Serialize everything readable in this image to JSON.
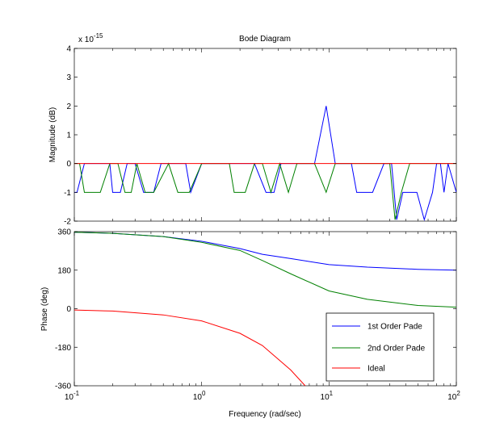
{
  "chart_data": [
    {
      "type": "line",
      "title": "Bode Diagram",
      "ylabel": "Magnitude (dB)",
      "y_scale_label": "x 10",
      "y_scale_exponent": "-15",
      "xscale": "log",
      "xlim": [
        0.1,
        100
      ],
      "ylim": [
        -2,
        4
      ],
      "yticks": [
        {
          "value": -2,
          "label": "-2"
        },
        {
          "value": -1,
          "label": "-1"
        },
        {
          "value": 0,
          "label": "0"
        },
        {
          "value": 1,
          "label": "1"
        },
        {
          "value": 2,
          "label": "2"
        },
        {
          "value": 3,
          "label": "3"
        },
        {
          "value": 4,
          "label": "4"
        }
      ],
      "series": [
        {
          "name": "1st Order Pade",
          "color": "#0000ff",
          "x": [
            0.1,
            0.105,
            0.12,
            0.19,
            0.2,
            0.23,
            0.26,
            0.3,
            0.35,
            0.42,
            0.48,
            0.75,
            0.82,
            1.0,
            1.65,
            2.6,
            3.2,
            3.7,
            4.2,
            4.8,
            5.6,
            6.6,
            7.7,
            9.5,
            11.2,
            13.0,
            15.0,
            16.5,
            22,
            27,
            31,
            34,
            38,
            43,
            49,
            56,
            65,
            70,
            75,
            80,
            86,
            100
          ],
          "y": [
            -1,
            -1,
            0,
            0,
            -1,
            -1,
            0,
            0,
            -1,
            -1,
            0,
            0,
            -1,
            0,
            0,
            0,
            -1,
            -1,
            0,
            0,
            0,
            0,
            0,
            2,
            0,
            0,
            0,
            -1,
            -1,
            0,
            0,
            -1.95,
            -1,
            -1,
            -1,
            -1.95,
            -1,
            0,
            0,
            -1,
            0,
            -1
          ]
        },
        {
          "name": "2nd Order Pade",
          "color": "#008000",
          "x": [
            0.1,
            0.11,
            0.12,
            0.14,
            0.16,
            0.19,
            0.22,
            0.25,
            0.28,
            0.31,
            0.36,
            0.42,
            0.55,
            0.65,
            0.8,
            1.0,
            1.65,
            1.8,
            2.2,
            2.6,
            3.0,
            3.5,
            4.1,
            4.8,
            5.6,
            6.6,
            7.7,
            9.5,
            11.2,
            13,
            25,
            30,
            33,
            37,
            43,
            50,
            55,
            60,
            80,
            90,
            100
          ],
          "y": [
            0,
            0,
            -1,
            -1,
            -1,
            0,
            0,
            -1,
            -1,
            0,
            -1,
            -1,
            0,
            -1,
            -1,
            0,
            0,
            -1,
            -1,
            0,
            0,
            -1,
            0,
            -1,
            0,
            0,
            0,
            -1,
            0,
            0,
            0,
            0,
            -1.95,
            -1,
            0,
            0,
            0,
            0,
            0,
            0,
            0
          ]
        },
        {
          "name": "Ideal",
          "color": "#ff0000",
          "x": [
            0.1,
            100
          ],
          "y": [
            0,
            0
          ]
        }
      ]
    },
    {
      "type": "line",
      "ylabel": "Phase (deg)",
      "xlabel": "Frequency  (rad/sec)",
      "xscale": "log",
      "xlim": [
        0.1,
        100
      ],
      "ylim": [
        -360,
        360
      ],
      "xticks": [
        {
          "value": 0.1,
          "base": "10",
          "exp": "-1"
        },
        {
          "value": 1,
          "base": "10",
          "exp": "0"
        },
        {
          "value": 10,
          "base": "10",
          "exp": "1"
        },
        {
          "value": 100,
          "base": "10",
          "exp": "2"
        }
      ],
      "yticks": [
        {
          "value": -360,
          "label": "-360"
        },
        {
          "value": -180,
          "label": "-180"
        },
        {
          "value": 0,
          "label": "0"
        },
        {
          "value": 180,
          "label": "180"
        },
        {
          "value": 360,
          "label": "360"
        }
      ],
      "legend_position": "bottom-right",
      "series": [
        {
          "name": "1st Order Pade",
          "color": "#0000ff",
          "x": [
            0.1,
            0.2,
            0.5,
            1,
            2,
            3,
            5,
            10,
            20,
            50,
            100
          ],
          "y": [
            357,
            352,
            337,
            315,
            281,
            254,
            234,
            206,
            194,
            184,
            180
          ]
        },
        {
          "name": "2nd Order Pade",
          "color": "#008000",
          "x": [
            0.1,
            0.2,
            0.5,
            1,
            2,
            3,
            5,
            10,
            20,
            50,
            100
          ],
          "y": [
            357,
            352,
            337,
            310,
            272,
            225,
            163,
            83,
            44,
            15,
            7
          ]
        },
        {
          "name": "Ideal",
          "color": "#ff0000",
          "x": [
            0.1,
            0.2,
            0.5,
            1,
            2,
            3,
            5,
            6.5
          ],
          "y": [
            -6,
            -11,
            -29,
            -57,
            -115,
            -172,
            -286,
            -360
          ]
        }
      ]
    }
  ]
}
